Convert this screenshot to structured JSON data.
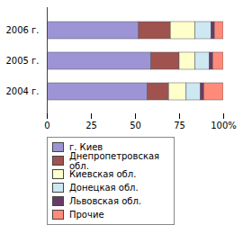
{
  "chart_data": {
    "type": "bar",
    "orientation": "horizontal",
    "stacked": true,
    "categories": [
      "2006 г.",
      "2005 г.",
      "2004 г."
    ],
    "series": [
      {
        "name": "г. Киев",
        "color": "#9c94d4",
        "values": [
          52,
          59,
          57
        ]
      },
      {
        "name": "Днепропетровская обл.",
        "color": "#a0524f",
        "values": [
          18,
          16,
          12
        ]
      },
      {
        "name": "Киевская обл.",
        "color": "#ffffcc",
        "values": [
          14,
          9,
          10
        ]
      },
      {
        "name": "Донецкая обл.",
        "color": "#cce8f2",
        "values": [
          9,
          8,
          8
        ]
      },
      {
        "name": "Львовская обл.",
        "color": "#6a3a66",
        "values": [
          2,
          2,
          2
        ]
      },
      {
        "name": "Прочие",
        "color": "#ff8a7a",
        "values": [
          5,
          6,
          11
        ]
      }
    ],
    "xlim": [
      0,
      100
    ],
    "xticks": [
      0,
      25,
      50,
      75,
      {
        "value": 100,
        "label": "100%"
      }
    ],
    "legend": "bottom"
  }
}
